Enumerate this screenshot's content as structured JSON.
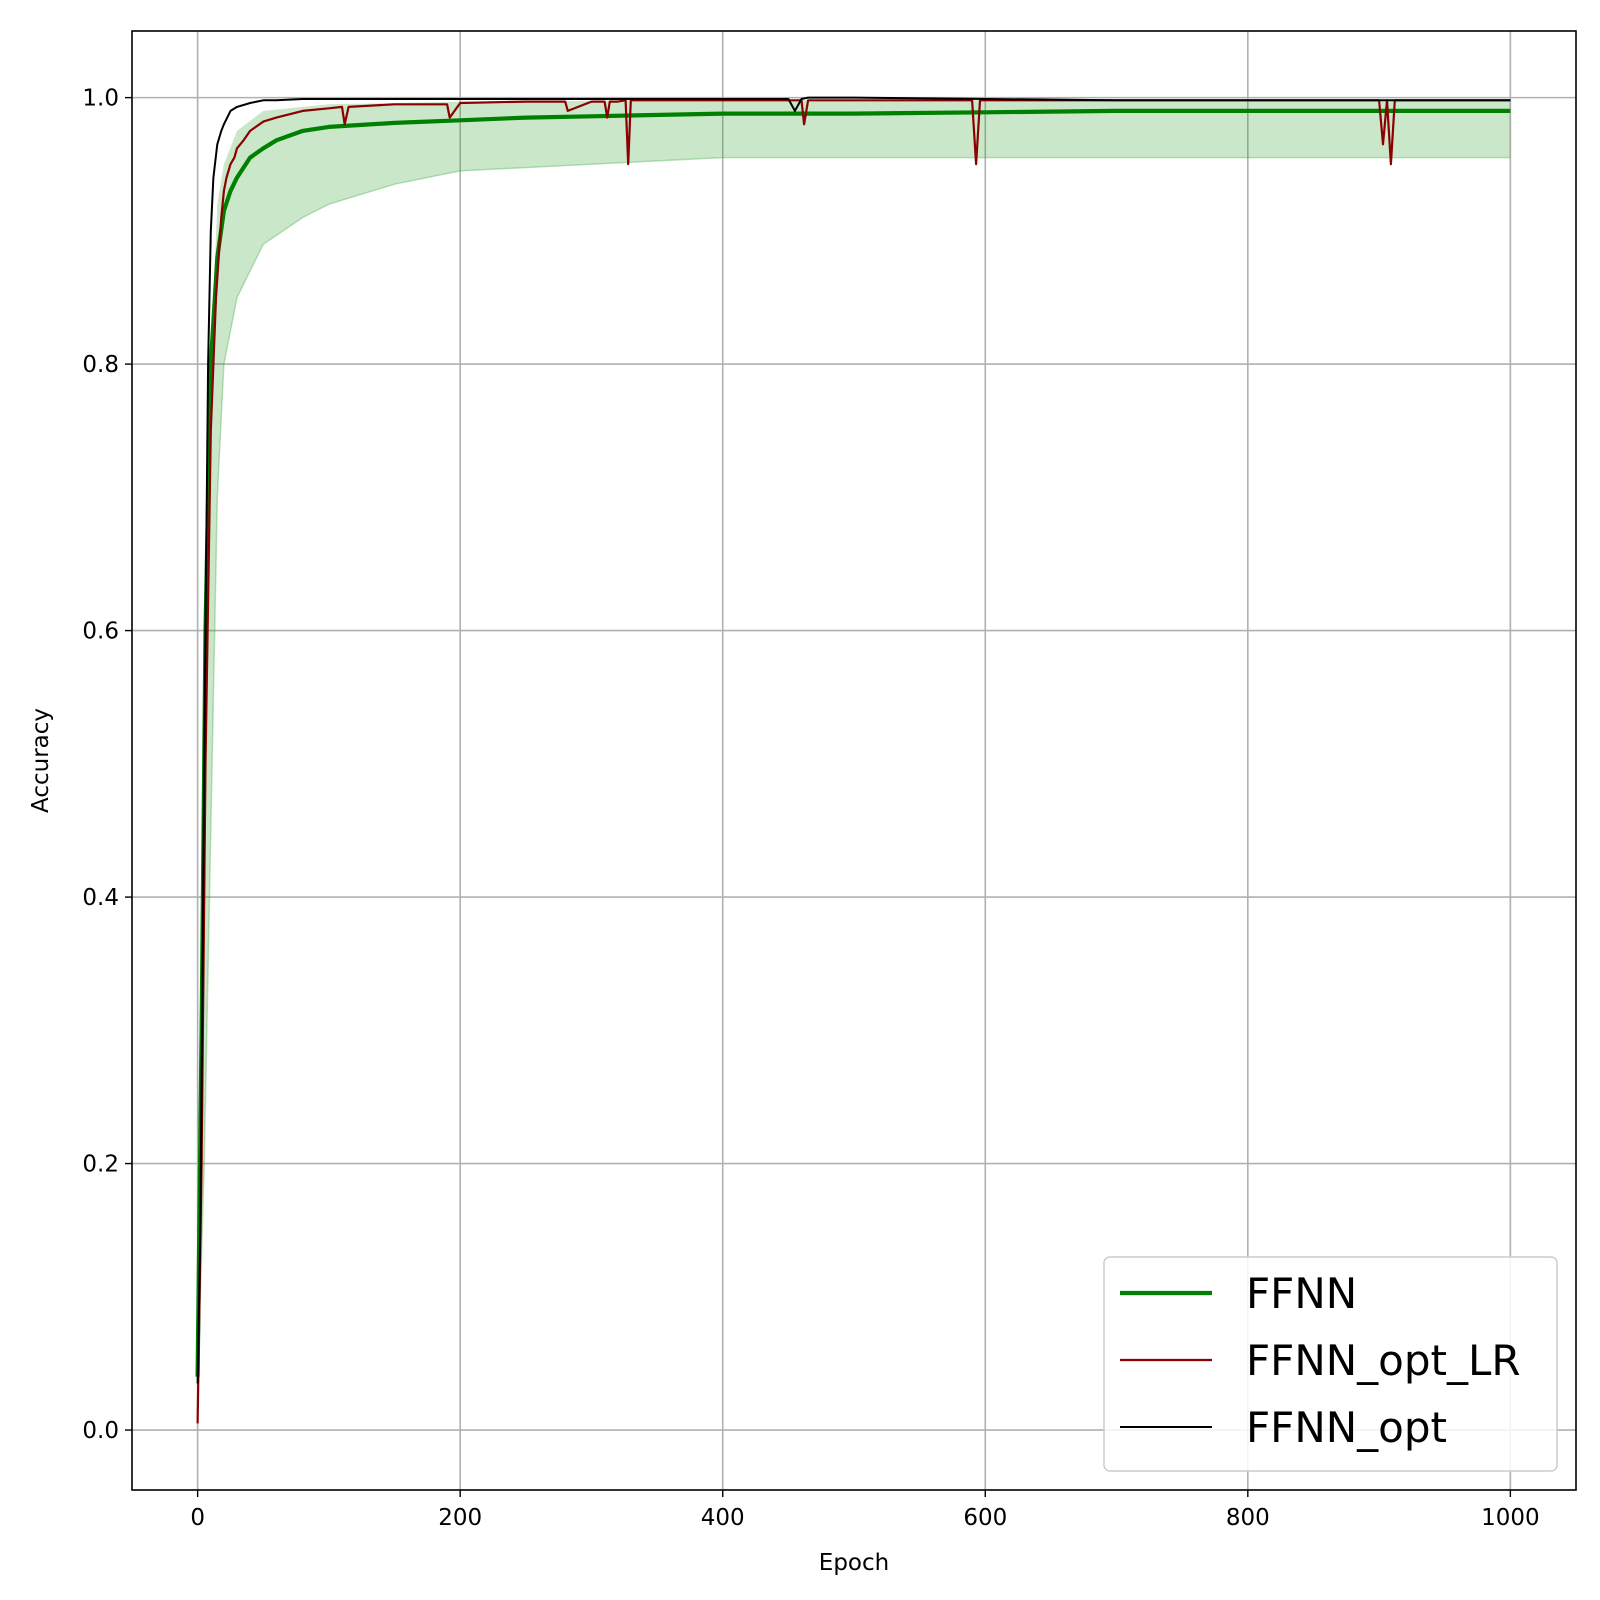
{
  "chart_data": {
    "type": "line",
    "title": "",
    "xlabel": "Epoch",
    "ylabel": "Accuracy",
    "xlim": [
      -50,
      1050
    ],
    "ylim": [
      -0.045,
      1.05
    ],
    "x_ticks": [
      0,
      200,
      400,
      600,
      800,
      1000
    ],
    "x_tick_labels": [
      "0",
      "200",
      "400",
      "600",
      "800",
      "1000"
    ],
    "y_ticks": [
      0.0,
      0.2,
      0.4,
      0.6,
      0.8,
      1.0
    ],
    "y_tick_labels": [
      "0.0",
      "0.2",
      "0.4",
      "0.6",
      "0.8",
      "1.0"
    ],
    "grid": true,
    "legend_position": "bottom-right",
    "band": {
      "color": "#2ca02c",
      "upper": {
        "x": [
          0,
          5,
          10,
          15,
          20,
          30,
          50,
          100,
          200,
          400,
          600,
          800,
          1000
        ],
        "y": [
          0.03,
          0.45,
          0.8,
          0.92,
          0.95,
          0.975,
          0.99,
          0.995,
          0.997,
          0.998,
          0.998,
          0.998,
          0.998
        ]
      },
      "lower": {
        "x": [
          0,
          5,
          10,
          15,
          20,
          30,
          50,
          80,
          100,
          150,
          200,
          300,
          400,
          600,
          800,
          1000
        ],
        "y": [
          0.03,
          0.2,
          0.45,
          0.7,
          0.8,
          0.85,
          0.89,
          0.91,
          0.92,
          0.935,
          0.945,
          0.95,
          0.955,
          0.955,
          0.955,
          0.955
        ]
      }
    },
    "series": [
      {
        "name": "FFNN",
        "color": "#008000",
        "x": [
          0,
          3,
          6,
          10,
          15,
          20,
          25,
          30,
          40,
          50,
          60,
          80,
          100,
          150,
          200,
          250,
          300,
          400,
          500,
          600,
          700,
          800,
          900,
          1000
        ],
        "y": [
          0.04,
          0.3,
          0.6,
          0.8,
          0.88,
          0.915,
          0.93,
          0.94,
          0.955,
          0.962,
          0.968,
          0.975,
          0.978,
          0.981,
          0.983,
          0.985,
          0.986,
          0.988,
          0.988,
          0.989,
          0.99,
          0.99,
          0.99,
          0.99
        ]
      },
      {
        "name": "FFNN_opt_LR",
        "color": "#8b0000",
        "x": [
          0,
          3,
          6,
          10,
          14,
          18,
          20,
          22,
          25,
          28,
          30,
          35,
          40,
          50,
          60,
          80,
          100,
          110,
          112,
          115,
          150,
          190,
          192,
          200,
          250,
          280,
          282,
          300,
          310,
          312,
          314,
          320,
          326,
          328,
          330,
          400,
          460,
          462,
          465,
          470,
          500,
          590,
          593,
          596,
          600,
          700,
          800,
          900,
          903,
          906,
          909,
          912,
          1000
        ],
        "y": [
          0.005,
          0.2,
          0.5,
          0.75,
          0.85,
          0.91,
          0.93,
          0.94,
          0.95,
          0.955,
          0.962,
          0.968,
          0.975,
          0.982,
          0.985,
          0.99,
          0.992,
          0.993,
          0.98,
          0.993,
          0.995,
          0.995,
          0.985,
          0.996,
          0.997,
          0.997,
          0.99,
          0.997,
          0.997,
          0.985,
          0.997,
          0.997,
          0.998,
          0.95,
          0.998,
          0.998,
          0.998,
          0.98,
          0.998,
          0.998,
          0.998,
          0.998,
          0.95,
          0.998,
          0.998,
          0.998,
          0.998,
          0.998,
          0.965,
          0.998,
          0.95,
          0.998,
          0.998
        ]
      },
      {
        "name": "FFNN_opt",
        "color": "#000000",
        "x": [
          0,
          2,
          5,
          8,
          10,
          12,
          15,
          18,
          20,
          25,
          30,
          40,
          50,
          60,
          80,
          100,
          150,
          200,
          300,
          400,
          450,
          455,
          460,
          465,
          470,
          500,
          600,
          700,
          800,
          900,
          1000
        ],
        "y": [
          0.035,
          0.15,
          0.5,
          0.8,
          0.9,
          0.94,
          0.965,
          0.975,
          0.98,
          0.99,
          0.993,
          0.996,
          0.998,
          0.998,
          0.999,
          0.999,
          0.999,
          0.999,
          0.999,
          0.999,
          0.999,
          0.99,
          0.999,
          1.0,
          1.0,
          1.0,
          0.999,
          0.998,
          0.998,
          0.998,
          0.998
        ]
      }
    ]
  }
}
